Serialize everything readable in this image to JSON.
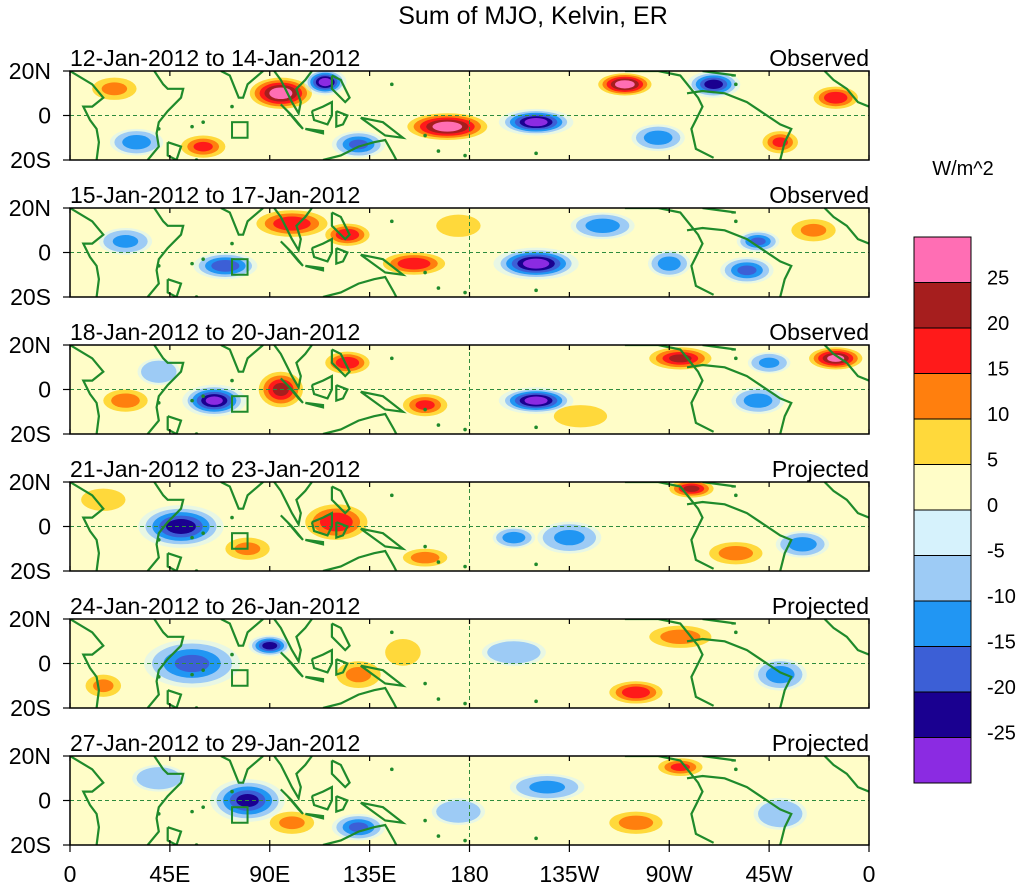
{
  "chart_data": {
    "type": "heatmap",
    "title": "Sum of MJO, Kelvin, ER",
    "colorbar": {
      "unit_label": "W/m^2",
      "levels": [
        -25,
        -20,
        -15,
        -10,
        -5,
        0,
        5,
        10,
        15,
        20,
        25
      ],
      "tick_labels": [
        "25",
        "20",
        "15",
        "10",
        "5",
        "0",
        "-5",
        "-10",
        "-15",
        "-20",
        "-25"
      ],
      "colors": [
        "#8b2be2",
        "#1a0090",
        "#3c5fd6",
        "#2196f3",
        "#9dcbf5",
        "#d6f2fc",
        "#fffdc8",
        "#ffd93b",
        "#ff7f0e",
        "#ff1a1a",
        "#a61e1e",
        "#ff6eb4"
      ]
    },
    "x_ticks": [
      "0",
      "45E",
      "90E",
      "135E",
      "180",
      "135W",
      "90W",
      "45W",
      "0"
    ],
    "y_ticks": [
      "20N",
      "0",
      "20S"
    ],
    "ylim": [
      -20,
      20
    ],
    "xlim": [
      0,
      360
    ],
    "panels": [
      {
        "date_range": "12-Jan-2012 to 14-Jan-2012",
        "type": "Observed"
      },
      {
        "date_range": "15-Jan-2012 to 17-Jan-2012",
        "type": "Observed"
      },
      {
        "date_range": "18-Jan-2012 to 20-Jan-2012",
        "type": "Observed"
      },
      {
        "date_range": "21-Jan-2012 to 23-Jan-2012",
        "type": "Projected"
      },
      {
        "date_range": "24-Jan-2012 to 26-Jan-2012",
        "type": "Projected"
      },
      {
        "date_range": "27-Jan-2012 to 29-Jan-2012",
        "type": "Projected"
      }
    ],
    "anomaly_centers": [
      [
        [
          95,
          10,
          14,
          7,
          27
        ],
        [
          115,
          15,
          8,
          5,
          -27
        ],
        [
          170,
          -5,
          18,
          6,
          27
        ],
        [
          210,
          -3,
          14,
          5,
          -27
        ],
        [
          250,
          14,
          12,
          5,
          27
        ],
        [
          290,
          14,
          10,
          5,
          -22
        ],
        [
          320,
          -12,
          8,
          5,
          15
        ],
        [
          345,
          8,
          10,
          5,
          18
        ],
        [
          30,
          -12,
          10,
          5,
          -12
        ],
        [
          60,
          -14,
          10,
          5,
          15
        ],
        [
          265,
          -10,
          10,
          5,
          -12
        ],
        [
          20,
          12,
          10,
          5,
          10
        ],
        [
          130,
          -13,
          10,
          5,
          -15
        ]
      ],
      [
        [
          100,
          13,
          16,
          6,
          18
        ],
        [
          125,
          8,
          10,
          5,
          18
        ],
        [
          155,
          -5,
          14,
          5,
          18
        ],
        [
          210,
          -5,
          16,
          6,
          -27
        ],
        [
          70,
          -6,
          12,
          5,
          -18
        ],
        [
          305,
          -8,
          10,
          5,
          -15
        ],
        [
          310,
          5,
          8,
          4,
          -15
        ],
        [
          270,
          -5,
          8,
          5,
          -12
        ],
        [
          240,
          12,
          12,
          5,
          -12
        ],
        [
          25,
          5,
          10,
          5,
          -10
        ],
        [
          175,
          12,
          10,
          5,
          8
        ],
        [
          335,
          10,
          10,
          5,
          10
        ]
      ],
      [
        [
          65,
          -5,
          12,
          6,
          -25
        ],
        [
          95,
          0,
          10,
          8,
          20
        ],
        [
          125,
          12,
          10,
          5,
          18
        ],
        [
          210,
          -5,
          14,
          5,
          -27
        ],
        [
          160,
          -7,
          10,
          5,
          15
        ],
        [
          275,
          14,
          14,
          5,
          20
        ],
        [
          345,
          14,
          12,
          5,
          25
        ],
        [
          310,
          -5,
          10,
          5,
          -12
        ],
        [
          25,
          -5,
          10,
          5,
          12
        ],
        [
          230,
          -12,
          12,
          5,
          8
        ],
        [
          315,
          12,
          8,
          4,
          -10
        ],
        [
          40,
          8,
          8,
          5,
          -8
        ]
      ],
      [
        [
          50,
          0,
          16,
          8,
          -22
        ],
        [
          120,
          2,
          14,
          8,
          18
        ],
        [
          280,
          17,
          10,
          4,
          20
        ],
        [
          330,
          -8,
          10,
          5,
          -12
        ],
        [
          160,
          -14,
          10,
          4,
          12
        ],
        [
          300,
          -12,
          12,
          5,
          12
        ],
        [
          225,
          -5,
          12,
          6,
          -10
        ],
        [
          200,
          -5,
          8,
          4,
          -12
        ],
        [
          80,
          -10,
          10,
          5,
          10
        ],
        [
          15,
          12,
          10,
          5,
          8
        ]
      ],
      [
        [
          55,
          0,
          18,
          9,
          -15
        ],
        [
          90,
          8,
          8,
          4,
          -22
        ],
        [
          130,
          -5,
          10,
          6,
          10
        ],
        [
          255,
          -13,
          12,
          5,
          18
        ],
        [
          275,
          12,
          14,
          5,
          12
        ],
        [
          200,
          5,
          12,
          5,
          -8
        ],
        [
          320,
          -5,
          10,
          6,
          -12
        ],
        [
          15,
          -10,
          8,
          5,
          10
        ],
        [
          150,
          5,
          8,
          6,
          8
        ]
      ],
      [
        [
          80,
          0,
          14,
          8,
          -20
        ],
        [
          130,
          -12,
          10,
          5,
          -15
        ],
        [
          275,
          15,
          10,
          4,
          15
        ],
        [
          255,
          -10,
          12,
          5,
          12
        ],
        [
          215,
          6,
          14,
          5,
          -10
        ],
        [
          40,
          10,
          10,
          5,
          -8
        ],
        [
          320,
          -6,
          10,
          6,
          -8
        ],
        [
          100,
          -10,
          10,
          5,
          10
        ],
        [
          175,
          -5,
          10,
          5,
          -8
        ]
      ]
    ]
  }
}
